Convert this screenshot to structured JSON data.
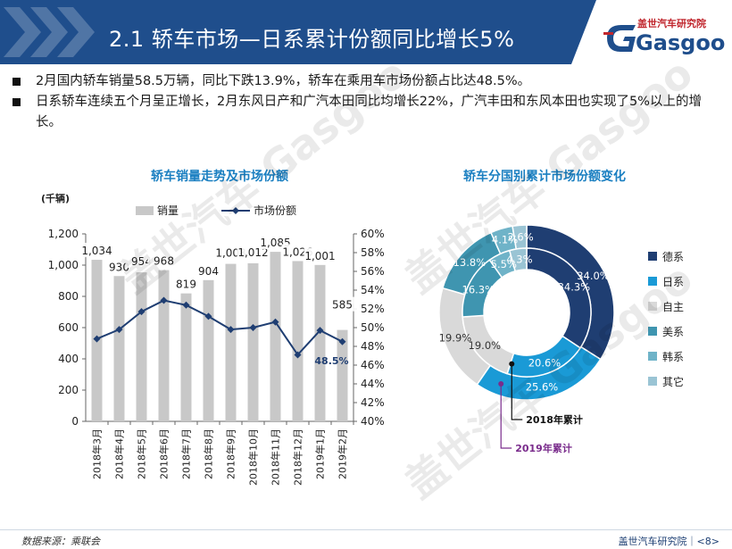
{
  "header": {
    "title": "2.1 轿车市场—日系累计份额同比增长5%",
    "logo_chinese": "盖世汽车研究院",
    "logo_brand": "Gasgoo"
  },
  "bullets": [
    "2月国内轿车销量58.5万辆，同比下跌13.9%，轿车在乘用车市场份额占比达48.5%。",
    "日系轿车连续五个月呈正增长，2月东风日产和广汽本田同比均增长22%，广汽丰田和东风本田也实现了5%以上的增长。"
  ],
  "watermark": "盖世汽车 Gasgoo",
  "colors": {
    "header_bg": "#1f4e8c",
    "bar": "#c8c8c8",
    "line": "#1f3e72",
    "accent_red": "#c0262d"
  },
  "chart_data": [
    {
      "type": "bar",
      "title": "轿车销量走势及市场份额",
      "unit_label": "(千辆)",
      "legend": [
        "销量",
        "市场份额"
      ],
      "legend_position": "top",
      "categories": [
        "2018年3月",
        "2018年4月",
        "2018年5月",
        "2018年6月",
        "2018年7月",
        "2018年8月",
        "2018年9月",
        "2018年10月",
        "2018年11月",
        "2018年12月",
        "2019年1月",
        "2019年2月"
      ],
      "series": [
        {
          "name": "销量",
          "type": "bar",
          "axis": "left",
          "values": [
            1034,
            930,
            954,
            968,
            819,
            904,
            1008,
            1012,
            1085,
            1026,
            1001,
            585
          ]
        },
        {
          "name": "市场份额",
          "type": "line",
          "axis": "right",
          "values": [
            48.8,
            49.8,
            51.7,
            52.9,
            52.4,
            51.2,
            49.8,
            50.0,
            50.6,
            47.1,
            49.7,
            48.5
          ]
        }
      ],
      "ylim_left": [
        0,
        1200
      ],
      "yticks_left": [
        0,
        200,
        400,
        600,
        800,
        1000,
        1200
      ],
      "ytick_labels_left": [
        "0",
        "200",
        "400",
        "600",
        "800",
        "1,000",
        "1,200"
      ],
      "ylim_right": [
        40,
        60
      ],
      "yticks_right": [
        40,
        42,
        44,
        46,
        48,
        50,
        52,
        54,
        56,
        58,
        60
      ],
      "ytick_labels_right": [
        "40%",
        "42%",
        "44%",
        "46%",
        "48%",
        "50%",
        "52%",
        "54%",
        "56%",
        "58%",
        "60%"
      ],
      "bar_labels": [
        "1,034",
        "930",
        "954",
        "968",
        "819",
        "904",
        "1,008",
        "1,012",
        "1,085",
        "1,026",
        "1,001",
        "585"
      ],
      "line_labels": [
        "",
        "",
        "",
        "",
        "",
        "",
        "",
        "",
        "",
        "",
        "",
        "48.5%"
      ],
      "grid": false
    },
    {
      "type": "pie",
      "title": "轿车分国别累计市场份额变化",
      "categories": [
        "德系",
        "日系",
        "自主",
        "美系",
        "韩系",
        "其它"
      ],
      "colors": [
        "#1f3e72",
        "#1a9ad6",
        "#d9d9d9",
        "#3f95b0",
        "#6fb3c8",
        "#9ac4d4"
      ],
      "series": [
        {
          "name": "2019年累计",
          "ring": "outer",
          "values": [
            34.0,
            25.6,
            19.9,
            13.8,
            4.1,
            2.6
          ],
          "labels": [
            "34.0%",
            "25.6%",
            "19.9%",
            "13.8%",
            "4.1%",
            "2.6%"
          ]
        },
        {
          "name": "2018年累计",
          "ring": "inner",
          "values": [
            34.3,
            20.6,
            19.0,
            16.3,
            5.5,
            4.3
          ],
          "labels": [
            "34.3%",
            "20.6%",
            "19.0%",
            "16.3%",
            "5.5%",
            "4.3%"
          ]
        }
      ],
      "legend_position": "right"
    }
  ],
  "footer": {
    "source": "数据来源：乘联会",
    "page": "盖世汽车研究院｜<8>"
  }
}
